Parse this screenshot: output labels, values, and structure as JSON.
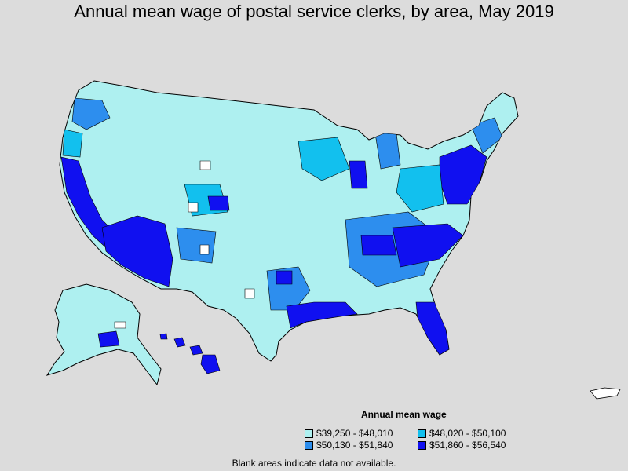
{
  "title": "Annual mean wage of postal service clerks, by area, May 2019",
  "legend": {
    "title": "Annual mean wage",
    "bins": [
      {
        "label": "$39,250 - $48,010",
        "color": "#aef0f0"
      },
      {
        "label": "$48,020 - $50,100",
        "color": "#12c0ee"
      },
      {
        "label": "$50,130 - $51,840",
        "color": "#2d8eee"
      },
      {
        "label": "$51,860 - $56,540",
        "color": "#1010f0"
      }
    ]
  },
  "footnote": "Blank areas indicate data not available.",
  "colors": {
    "background": "#dcdcdc",
    "border": "#000000",
    "no_data": "#ffffff"
  }
}
